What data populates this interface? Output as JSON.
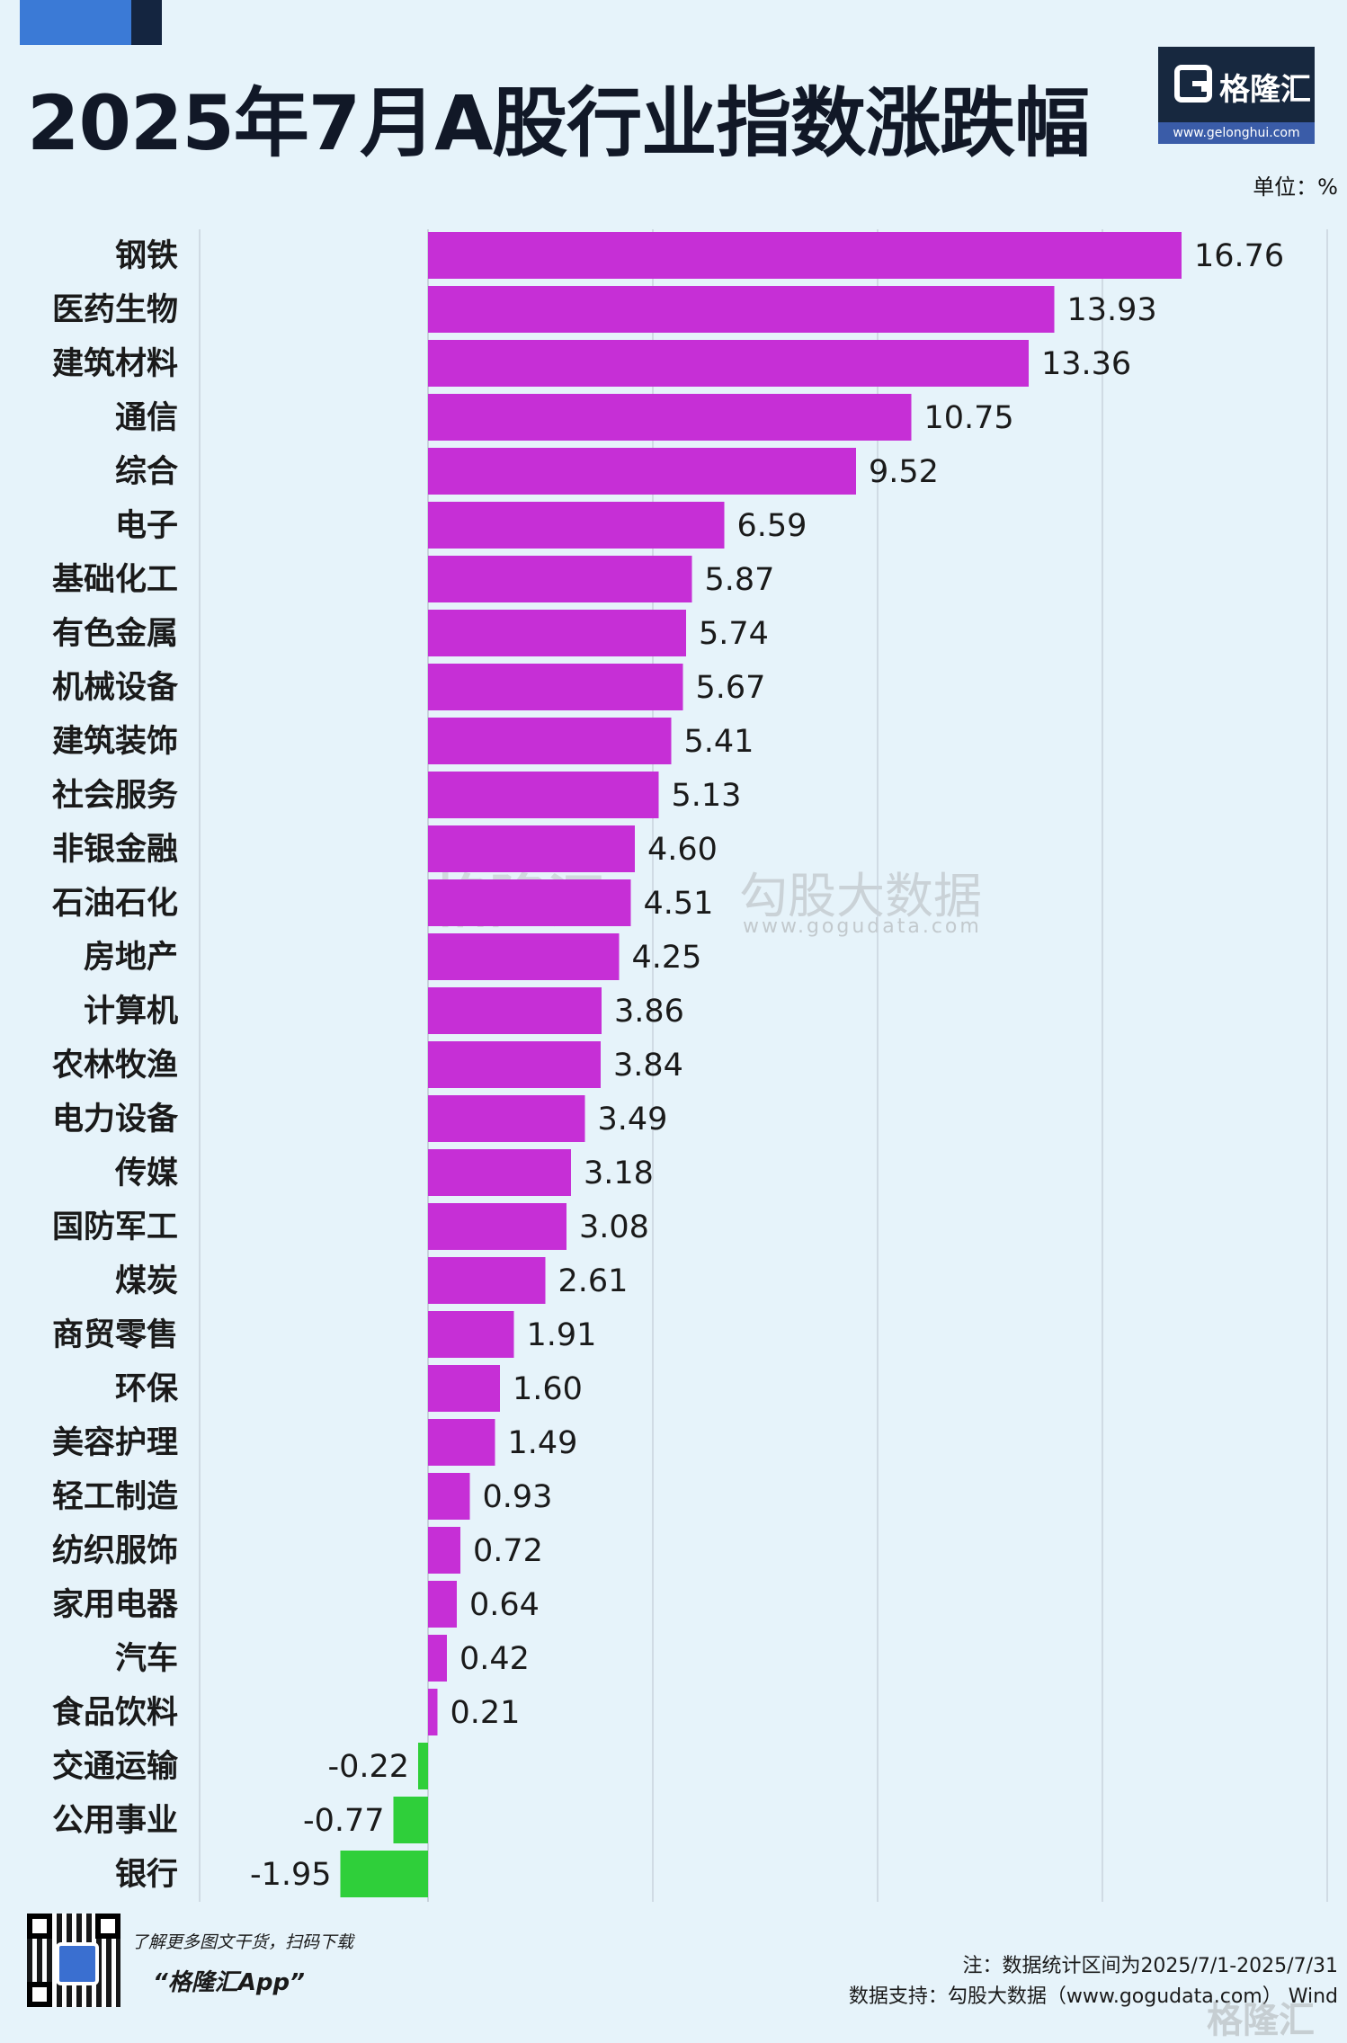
{
  "header": {
    "title": "2025年7月A股行业指数涨跌幅",
    "unit": "单位：%"
  },
  "logo": {
    "name": "格隆汇",
    "url": "www.gelonghui.com"
  },
  "watermark": {
    "brand": "格隆汇",
    "data_brand": "勾股大数据",
    "data_url": "www.gogudata.com"
  },
  "footer": {
    "promo_line": "了解更多图文干货，扫码下载",
    "app_name": "“格隆汇App”",
    "note": "注：数据统计区间为2025/7/1-2025/7/31",
    "source": "数据支持：勾股大数据（www.gogudata.com） Wind"
  },
  "colors": {
    "positive": "#c62fd6",
    "negative": "#2fcf3a",
    "grid": "#c9d3dc",
    "background": "#e6f3fa"
  },
  "chart_data": {
    "type": "bar",
    "orientation": "horizontal",
    "title": "2025年7月A股行业指数涨跌幅",
    "unit": "单位：%",
    "categories": [
      "钢铁",
      "医药生物",
      "建筑材料",
      "通信",
      "综合",
      "电子",
      "基础化工",
      "有色金属",
      "机械设备",
      "建筑装饰",
      "社会服务",
      "非银金融",
      "石油石化",
      "房地产",
      "计算机",
      "农林牧渔",
      "电力设备",
      "传媒",
      "国防军工",
      "煤炭",
      "商贸零售",
      "环保",
      "美容护理",
      "轻工制造",
      "纺织服饰",
      "家用电器",
      "汽车",
      "食品饮料",
      "交通运输",
      "公用事业",
      "银行"
    ],
    "value_labels": [
      "16.76",
      "13.93",
      "13.36",
      "10.75",
      "9.52",
      "6.59",
      "5.87",
      "5.74",
      "5.67",
      "5.41",
      "5.13",
      "4.60",
      "4.51",
      "4.25",
      "3.86",
      "3.84",
      "3.49",
      "3.18",
      "3.08",
      "2.61",
      "1.91",
      "1.60",
      "1.49",
      "0.93",
      "0.72",
      "0.64",
      "0.42",
      "0.21",
      "-0.22",
      "-0.77",
      "-1.95"
    ],
    "values": [
      16.76,
      13.93,
      13.36,
      10.75,
      9.52,
      6.59,
      5.87,
      5.74,
      5.67,
      5.41,
      5.13,
      4.6,
      4.51,
      4.25,
      3.86,
      3.84,
      3.49,
      3.18,
      3.08,
      2.61,
      1.91,
      1.6,
      1.49,
      0.93,
      0.72,
      0.64,
      0.42,
      0.21,
      -0.22,
      -0.77,
      -1.95
    ],
    "xlim": [
      -5,
      20
    ],
    "grid": true
  }
}
